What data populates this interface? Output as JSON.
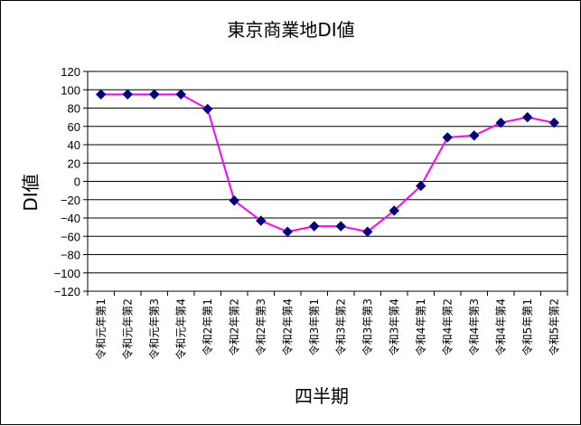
{
  "chart_data": {
    "type": "line",
    "title": "東京商業地DI値",
    "xlabel": "四半期",
    "ylabel": "DI値",
    "ylim": [
      -120,
      120
    ],
    "ytick_step": 20,
    "grid": true,
    "categories": [
      "令和元年第1",
      "令和元年第2",
      "令和元年第3",
      "令和元年第4",
      "令和2年第1",
      "令和2年第2",
      "令和2年第3",
      "令和2年第4",
      "令和3年第1",
      "令和3年第2",
      "令和3年第3",
      "令和3年第4",
      "令和4年第1",
      "令和4年第2",
      "令和4年第3",
      "令和4年第4",
      "令和5年第1",
      "令和5年第2"
    ],
    "series": [
      {
        "values": [
          95,
          95,
          95,
          95,
          79,
          -21,
          -43,
          -55,
          -49,
          -49,
          -55,
          -32,
          -5,
          48,
          50,
          64,
          70,
          64
        ],
        "line_color": "#ff00ff",
        "marker_color": "#000080",
        "marker": "diamond"
      }
    ]
  }
}
